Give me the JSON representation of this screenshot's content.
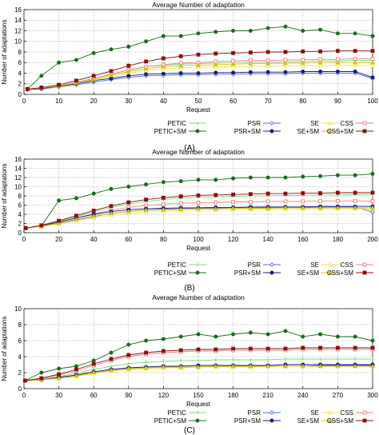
{
  "legend_labels": [
    "PETIC",
    "PSR",
    "SE",
    "CSS",
    "PETIC+SM",
    "PSR+SM",
    "SE+SM",
    "CSS+SM"
  ],
  "chart_data": [
    {
      "type": "line",
      "title": "Average Number of adaptation",
      "xlabel": "Request",
      "ylabel": "Number of adaptations",
      "caption": "(A)",
      "xlim": [
        0,
        100
      ],
      "ylim": [
        0,
        16
      ],
      "xticks": [
        0,
        10,
        20,
        30,
        40,
        50,
        60,
        70,
        80,
        90,
        100
      ],
      "yticks": [
        0,
        2,
        4,
        6,
        8,
        10,
        12,
        14,
        16
      ],
      "grid": true,
      "legend_position": "below",
      "x": [
        1,
        5,
        10,
        15,
        20,
        25,
        30,
        35,
        40,
        45,
        50,
        55,
        60,
        65,
        70,
        75,
        80,
        85,
        90,
        95,
        100
      ],
      "series": [
        {
          "name": "PETIC",
          "values": [
            1.0,
            1.2,
            1.6,
            2.2,
            3.0,
            3.8,
            4.6,
            5.2,
            5.5,
            5.7,
            5.8,
            5.9,
            6.0,
            6.1,
            6.1,
            6.2,
            6.2,
            6.3,
            6.3,
            6.4,
            6.4
          ]
        },
        {
          "name": "PSR",
          "values": [
            0.9,
            1.0,
            1.4,
            1.8,
            2.3,
            2.8,
            3.2,
            3.5,
            3.6,
            3.7,
            3.7,
            3.8,
            3.8,
            3.9,
            3.9,
            3.9,
            4.0,
            4.0,
            4.0,
            4.0,
            3.0
          ]
        },
        {
          "name": "SE",
          "values": [
            1.0,
            1.1,
            1.4,
            1.9,
            2.6,
            3.3,
            4.0,
            4.5,
            4.8,
            5.0,
            5.1,
            5.2,
            5.2,
            5.3,
            5.3,
            5.4,
            5.4,
            5.4,
            5.5,
            5.5,
            5.5
          ]
        },
        {
          "name": "CSS",
          "values": [
            1.0,
            1.2,
            1.6,
            2.3,
            3.0,
            3.8,
            4.6,
            5.2,
            5.6,
            5.9,
            6.0,
            6.2,
            6.3,
            6.4,
            6.4,
            6.5,
            6.5,
            6.6,
            6.6,
            6.7,
            6.7
          ]
        },
        {
          "name": "PETIC+SM",
          "values": [
            1.0,
            3.5,
            6.0,
            6.5,
            7.8,
            8.5,
            9.0,
            10.0,
            11.0,
            11.0,
            11.5,
            11.8,
            12.0,
            12.0,
            12.5,
            12.8,
            12.0,
            12.2,
            11.5,
            11.5,
            11.0
          ]
        },
        {
          "name": "PSR+SM",
          "values": [
            1.0,
            1.1,
            1.5,
            2.0,
            2.6,
            3.0,
            3.5,
            3.8,
            3.9,
            4.0,
            4.0,
            4.1,
            4.1,
            4.2,
            4.2,
            4.2,
            4.3,
            4.3,
            4.3,
            4.3,
            3.2
          ]
        },
        {
          "name": "SE+SM",
          "values": [
            1.0,
            1.2,
            1.6,
            2.2,
            2.8,
            3.6,
            4.3,
            4.8,
            5.2,
            5.4,
            5.5,
            5.6,
            5.7,
            5.8,
            5.8,
            5.9,
            5.9,
            6.0,
            6.0,
            6.0,
            6.0
          ]
        },
        {
          "name": "CSS+SM",
          "values": [
            1.0,
            1.3,
            1.8,
            2.6,
            3.5,
            4.4,
            5.4,
            6.2,
            6.8,
            7.2,
            7.5,
            7.7,
            7.8,
            7.9,
            8.0,
            8.0,
            8.1,
            8.1,
            8.2,
            8.2,
            8.2
          ]
        }
      ]
    },
    {
      "type": "line",
      "title": "Average Number of adaptation",
      "xlabel": "Request",
      "ylabel": "Number of adaptations",
      "caption": "(B)",
      "xlim": [
        0,
        200
      ],
      "ylim": [
        0,
        16
      ],
      "xticks": [
        0,
        20,
        40,
        60,
        80,
        100,
        120,
        140,
        160,
        180,
        200
      ],
      "yticks": [
        0,
        2,
        4,
        6,
        8,
        10,
        12,
        14,
        16
      ],
      "grid": true,
      "legend_position": "below",
      "x": [
        1,
        10,
        20,
        30,
        40,
        50,
        60,
        70,
        80,
        90,
        100,
        110,
        120,
        130,
        140,
        150,
        160,
        170,
        180,
        190,
        200
      ],
      "series": [
        {
          "name": "PETIC",
          "values": [
            1.0,
            1.6,
            2.5,
            3.5,
            4.5,
            5.5,
            6.2,
            6.8,
            7.2,
            7.5,
            7.7,
            7.8,
            7.9,
            8.0,
            8.0,
            8.1,
            8.1,
            8.2,
            8.2,
            8.3,
            8.3
          ]
        },
        {
          "name": "PSR",
          "values": [
            1.0,
            1.4,
            2.0,
            2.8,
            3.5,
            4.2,
            4.6,
            4.9,
            5.1,
            5.2,
            5.3,
            5.3,
            5.4,
            5.4,
            5.5,
            5.5,
            5.5,
            5.6,
            5.6,
            5.6,
            4.5
          ]
        },
        {
          "name": "SE",
          "values": [
            1.0,
            1.3,
            1.9,
            2.6,
            3.2,
            3.8,
            4.2,
            4.5,
            4.7,
            4.8,
            4.9,
            5.0,
            5.0,
            5.1,
            5.1,
            5.1,
            5.2,
            5.2,
            5.2,
            5.2,
            5.2
          ]
        },
        {
          "name": "CSS",
          "values": [
            1.0,
            1.5,
            2.3,
            3.2,
            4.1,
            4.9,
            5.5,
            5.9,
            6.2,
            6.4,
            6.5,
            6.6,
            6.7,
            6.7,
            6.8,
            6.8,
            6.8,
            6.9,
            6.9,
            6.9,
            6.9
          ]
        },
        {
          "name": "PETIC+SM",
          "values": [
            1.0,
            1.5,
            7.0,
            7.5,
            8.5,
            9.5,
            10.0,
            10.5,
            11.0,
            11.2,
            11.5,
            11.5,
            11.8,
            12.0,
            12.0,
            12.0,
            12.2,
            12.3,
            12.5,
            12.5,
            12.8
          ]
        },
        {
          "name": "PSR+SM",
          "values": [
            1.0,
            1.5,
            2.3,
            3.2,
            4.0,
            4.6,
            5.0,
            5.2,
            5.3,
            5.4,
            5.4,
            5.5,
            5.5,
            5.6,
            5.6,
            5.6,
            5.6,
            5.7,
            5.7,
            5.7,
            5.7
          ]
        },
        {
          "name": "SE+SM",
          "values": [
            1.0,
            1.4,
            2.1,
            2.9,
            3.6,
            4.2,
            4.6,
            4.9,
            5.0,
            5.1,
            5.2,
            5.2,
            5.3,
            5.3,
            5.3,
            5.4,
            5.4,
            5.4,
            5.4,
            5.4,
            5.4
          ]
        },
        {
          "name": "CSS+SM",
          "values": [
            1.0,
            1.6,
            2.6,
            3.7,
            4.8,
            5.8,
            6.6,
            7.2,
            7.6,
            7.9,
            8.1,
            8.2,
            8.3,
            8.4,
            8.5,
            8.5,
            8.6,
            8.6,
            8.7,
            8.7,
            8.7
          ]
        }
      ]
    },
    {
      "type": "line",
      "title": "Average Number of adaptation",
      "xlabel": "Request",
      "ylabel": "Number of adaptations",
      "caption": "(C)",
      "xlim": [
        0,
        300
      ],
      "ylim": [
        0,
        10
      ],
      "xticks": [
        0,
        30,
        60,
        90,
        120,
        150,
        180,
        210,
        240,
        270,
        300
      ],
      "yticks": [
        0,
        2,
        4,
        6,
        8,
        10
      ],
      "grid": true,
      "legend_position": "below",
      "x": [
        1,
        15,
        30,
        45,
        60,
        75,
        90,
        105,
        120,
        135,
        150,
        165,
        180,
        195,
        210,
        225,
        240,
        255,
        270,
        285,
        300
      ],
      "series": [
        {
          "name": "PETIC",
          "values": [
            1.0,
            1.2,
            1.5,
            1.9,
            2.4,
            2.8,
            3.1,
            3.3,
            3.4,
            3.5,
            3.5,
            3.6,
            3.6,
            3.6,
            3.6,
            3.7,
            3.7,
            3.7,
            3.7,
            3.7,
            3.7
          ]
        },
        {
          "name": "PSR",
          "values": [
            1.0,
            1.1,
            1.3,
            1.6,
            2.0,
            2.3,
            2.5,
            2.6,
            2.7,
            2.7,
            2.7,
            2.8,
            2.8,
            2.8,
            2.8,
            2.8,
            2.8,
            2.9,
            2.9,
            2.9,
            2.9
          ]
        },
        {
          "name": "SE",
          "values": [
            1.0,
            1.1,
            1.3,
            1.5,
            1.9,
            2.2,
            2.4,
            2.5,
            2.6,
            2.6,
            2.7,
            2.7,
            2.7,
            2.7,
            2.8,
            2.8,
            2.8,
            2.8,
            2.8,
            2.8,
            2.8
          ]
        },
        {
          "name": "CSS",
          "values": [
            1.0,
            1.3,
            1.7,
            2.2,
            2.9,
            3.5,
            4.0,
            4.3,
            4.5,
            4.6,
            4.7,
            4.7,
            4.8,
            4.8,
            4.8,
            4.8,
            4.9,
            4.9,
            4.9,
            4.9,
            4.9
          ]
        },
        {
          "name": "PETIC+SM",
          "values": [
            1.0,
            2.0,
            2.5,
            2.8,
            3.5,
            4.5,
            5.5,
            6.0,
            6.2,
            6.5,
            6.8,
            6.5,
            6.8,
            7.0,
            6.8,
            7.2,
            6.5,
            6.8,
            6.5,
            6.5,
            6.0
          ]
        },
        {
          "name": "PSR+SM",
          "values": [
            1.0,
            1.1,
            1.4,
            1.7,
            2.1,
            2.4,
            2.6,
            2.7,
            2.8,
            2.8,
            2.9,
            2.9,
            2.9,
            2.9,
            2.9,
            3.0,
            3.0,
            3.0,
            3.0,
            3.0,
            3.0
          ]
        },
        {
          "name": "SE+SM",
          "values": [
            1.0,
            1.1,
            1.3,
            1.6,
            2.0,
            2.3,
            2.5,
            2.6,
            2.7,
            2.7,
            2.7,
            2.8,
            2.8,
            2.8,
            2.8,
            2.8,
            2.8,
            2.8,
            2.8,
            2.8,
            2.8
          ]
        },
        {
          "name": "CSS+SM",
          "values": [
            1.0,
            1.3,
            1.8,
            2.4,
            3.1,
            3.7,
            4.2,
            4.5,
            4.7,
            4.8,
            4.9,
            4.9,
            5.0,
            5.0,
            5.0,
            5.0,
            5.1,
            5.1,
            5.1,
            5.1,
            5.1
          ]
        }
      ]
    }
  ],
  "series_style": [
    {
      "name": "PETIC",
      "color": "#7fdc7f",
      "marker": "plus"
    },
    {
      "name": "PSR",
      "color": "#4a6fe0",
      "marker": "diamond-open"
    },
    {
      "name": "SE",
      "color": "#f2e64a",
      "marker": "triangle-open"
    },
    {
      "name": "CSS",
      "color": "#f08080",
      "marker": "square-open"
    },
    {
      "name": "PETIC+SM",
      "color": "#1a6b1a",
      "marker": "circle-filled"
    },
    {
      "name": "PSR+SM",
      "color": "#1a1a7a",
      "marker": "circle-filled"
    },
    {
      "name": "SE+SM",
      "color": "#cfc21a",
      "marker": "triangle-filled"
    },
    {
      "name": "CSS+SM",
      "color": "#8b1010",
      "marker": "square-filled"
    }
  ]
}
